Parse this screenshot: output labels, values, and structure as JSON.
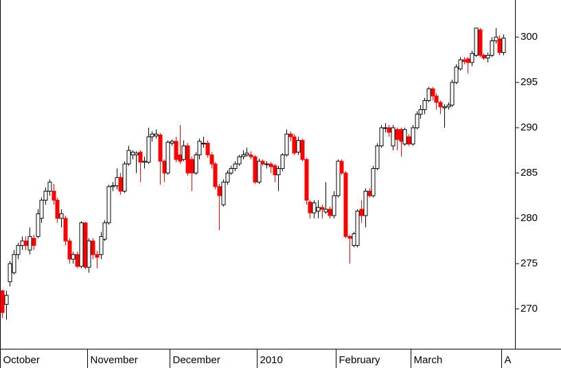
{
  "chart_data": {
    "type": "candlestick",
    "categories": [
      "October",
      null,
      null,
      null,
      null,
      null,
      null,
      null,
      null,
      null,
      null,
      null,
      null,
      null,
      null,
      null,
      null,
      null,
      null,
      null,
      null,
      null,
      "November",
      null,
      null,
      null,
      null,
      null,
      null,
      null,
      null,
      null,
      null,
      null,
      null,
      null,
      null,
      null,
      null,
      null,
      null,
      null,
      null,
      "December",
      null,
      null,
      null,
      null,
      null,
      null,
      null,
      null,
      null,
      null,
      null,
      null,
      null,
      null,
      null,
      null,
      null,
      null,
      null,
      null,
      null,
      "2010",
      null,
      null,
      null,
      null,
      null,
      null,
      null,
      null,
      null,
      null,
      null,
      null,
      null,
      null,
      null,
      null,
      null,
      null,
      null,
      "February",
      null,
      null,
      null,
      null,
      null,
      null,
      null,
      null,
      null,
      null,
      null,
      null,
      null,
      null,
      null,
      null,
      null,
      null,
      "March",
      null,
      null,
      null,
      null,
      null,
      null,
      null,
      null,
      null,
      null,
      null,
      null,
      null,
      null,
      null,
      null,
      null,
      null,
      null,
      null,
      null,
      null,
      "A"
    ],
    "open": [
      272.0,
      270.5,
      273.0,
      274.0,
      276.0,
      277.0,
      277.5,
      276.5,
      277.8,
      278.0,
      280.0,
      282.0,
      283.0,
      283.0,
      282.0,
      280.0,
      280.0,
      277.5,
      275.5,
      276.0,
      274.7,
      279.5,
      274.6,
      277.5,
      276.0,
      276.0,
      277.7,
      279.5,
      283.5,
      283.6,
      284.5,
      283.0,
      286.0,
      287.0,
      287.0,
      287.3,
      286.2,
      286.2,
      289.0,
      289.1,
      289.2,
      286.3,
      285.0,
      288.3,
      288.5,
      287.0,
      286.5,
      288.0,
      286.5,
      285.0,
      287.0,
      288.2,
      288.3,
      287.0,
      286.0,
      283.5,
      281.5,
      284.0,
      285.0,
      285.5,
      286.0,
      286.8,
      287.0,
      287.0,
      286.8,
      284.0,
      286.3,
      286.0,
      286.0,
      285.8,
      284.8,
      285.5,
      287.0,
      289.3,
      289.0,
      287.3,
      288.6,
      286.5,
      281.8,
      280.6,
      280.8,
      281.2,
      280.7,
      281.0,
      280.3,
      282.5,
      286.3,
      285.0,
      278.0,
      277.0,
      277.0,
      281.0,
      280.3,
      283.0,
      282.5,
      285.5,
      288.0,
      290.0,
      290.0,
      288.0,
      289.8,
      289.8,
      288.2,
      289.0,
      288.2,
      290.0,
      291.5,
      292.0,
      293.0,
      294.3,
      293.5,
      292.8,
      292.2,
      292.3,
      292.5,
      295.0,
      296.5,
      297.5,
      297.6,
      297.2,
      298.0,
      300.8,
      298.0,
      297.7,
      298.0,
      299.6,
      299.8,
      298.3
    ],
    "high": [
      272.1,
      272.0,
      275.3,
      276.5,
      277.3,
      278.0,
      278.0,
      279.0,
      278.2,
      281.0,
      282.3,
      283.4,
      284.3,
      283.8,
      282.3,
      281.0,
      280.3,
      277.8,
      276.3,
      276.3,
      279.7,
      279.6,
      277.8,
      277.8,
      276.4,
      278.5,
      279.8,
      283.7,
      284.0,
      285.5,
      285.0,
      286.3,
      288.0,
      287.5,
      287.4,
      287.5,
      286.8,
      290.0,
      289.6,
      289.8,
      289.4,
      286.5,
      288.6,
      288.7,
      289.0,
      290.3,
      288.6,
      288.3,
      286.8,
      287.3,
      288.8,
      289.0,
      288.6,
      287.3,
      286.2,
      283.8,
      284.3,
      285.3,
      285.8,
      286.3,
      287.0,
      287.5,
      287.8,
      287.4,
      287.0,
      286.6,
      286.5,
      286.3,
      286.2,
      286.0,
      285.8,
      287.2,
      289.8,
      289.6,
      289.3,
      289.0,
      288.8,
      286.7,
      282.0,
      282.0,
      282.0,
      281.5,
      284.0,
      281.3,
      283.0,
      286.5,
      286.5,
      285.2,
      278.2,
      278.5,
      281.0,
      282.0,
      283.3,
      283.3,
      285.8,
      288.3,
      290.3,
      290.5,
      290.3,
      290.3,
      290.0,
      290.0,
      290.0,
      289.3,
      290.3,
      291.8,
      292.5,
      293.3,
      294.5,
      294.5,
      293.8,
      293.0,
      292.6,
      292.8,
      295.3,
      297.0,
      297.8,
      297.8,
      297.8,
      298.5,
      301.0,
      301.0,
      298.2,
      298.3,
      300.0,
      301.0,
      300.2,
      300.3
    ],
    "low": [
      269.0,
      268.8,
      272.5,
      273.8,
      275.5,
      276.5,
      276.5,
      276.0,
      276.5,
      277.8,
      279.5,
      281.5,
      282.5,
      281.5,
      279.5,
      279.0,
      277.0,
      275.0,
      275.0,
      274.5,
      274.5,
      274.4,
      274.0,
      275.5,
      274.5,
      275.5,
      277.5,
      279.3,
      283.0,
      283.2,
      282.6,
      282.8,
      285.8,
      286.5,
      285.0,
      284.0,
      285.5,
      286.0,
      288.5,
      288.8,
      283.7,
      284.0,
      284.8,
      288.0,
      286.2,
      286.0,
      286.3,
      284.7,
      283.0,
      284.8,
      286.5,
      287.8,
      286.7,
      285.5,
      283.2,
      278.7,
      281.3,
      283.7,
      284.8,
      285.2,
      285.8,
      286.5,
      286.8,
      286.5,
      283.8,
      283.8,
      285.8,
      285.5,
      285.0,
      284.0,
      283.0,
      285.2,
      286.8,
      288.5,
      287.0,
      287.0,
      286.3,
      281.5,
      280.0,
      280.0,
      280.0,
      280.0,
      280.5,
      280.0,
      280.0,
      282.3,
      284.8,
      277.8,
      275.0,
      276.8,
      276.8,
      279.5,
      279.0,
      282.3,
      282.3,
      285.3,
      287.8,
      289.5,
      289.0,
      287.5,
      287.5,
      286.8,
      288.0,
      288.0,
      288.0,
      289.8,
      291.0,
      291.5,
      292.8,
      293.0,
      292.0,
      291.5,
      290.0,
      292.0,
      292.3,
      294.8,
      296.3,
      297.0,
      296.0,
      296.8,
      297.8,
      297.8,
      297.5,
      297.2,
      297.8,
      299.3,
      298.0,
      298.0
    ],
    "close": [
      269.6,
      271.5,
      275.0,
      276.0,
      277.0,
      277.5,
      277.0,
      278.0,
      277.0,
      280.5,
      282.0,
      283.0,
      284.0,
      282.0,
      280.0,
      280.5,
      277.5,
      275.5,
      276.0,
      274.7,
      279.5,
      274.6,
      277.5,
      276.0,
      275.7,
      278.0,
      279.5,
      283.5,
      283.6,
      284.5,
      283.0,
      286.0,
      287.5,
      287.3,
      287.2,
      286.2,
      286.3,
      289.0,
      289.3,
      289.3,
      286.3,
      285.0,
      288.4,
      288.5,
      286.5,
      286.3,
      288.0,
      285.0,
      285.0,
      287.0,
      288.5,
      288.3,
      287.0,
      286.0,
      283.5,
      282.5,
      284.0,
      285.0,
      285.5,
      286.0,
      286.8,
      287.0,
      287.2,
      286.8,
      284.0,
      286.3,
      286.0,
      286.0,
      285.7,
      284.8,
      285.5,
      287.0,
      289.3,
      289.0,
      287.2,
      288.6,
      286.5,
      282.0,
      280.6,
      281.7,
      281.2,
      281.0,
      281.0,
      280.3,
      282.5,
      286.3,
      285.0,
      278.0,
      277.8,
      278.3,
      280.8,
      280.3,
      283.0,
      282.5,
      285.5,
      288.0,
      290.0,
      290.0,
      289.5,
      290.0,
      288.7,
      288.5,
      289.8,
      288.2,
      290.0,
      291.5,
      292.0,
      293.0,
      294.3,
      293.5,
      292.8,
      292.3,
      292.3,
      292.5,
      295.0,
      296.7,
      297.5,
      297.3,
      297.2,
      298.2,
      301.0,
      298.0,
      297.7,
      298.0,
      299.6,
      300.0,
      298.3,
      299.9
    ],
    "up_color": "#ffffff",
    "down_color": "#ff0000",
    "ylim": [
      265.6,
      304.1
    ],
    "yticks": [
      270,
      275,
      280,
      285,
      290,
      295,
      300
    ]
  }
}
